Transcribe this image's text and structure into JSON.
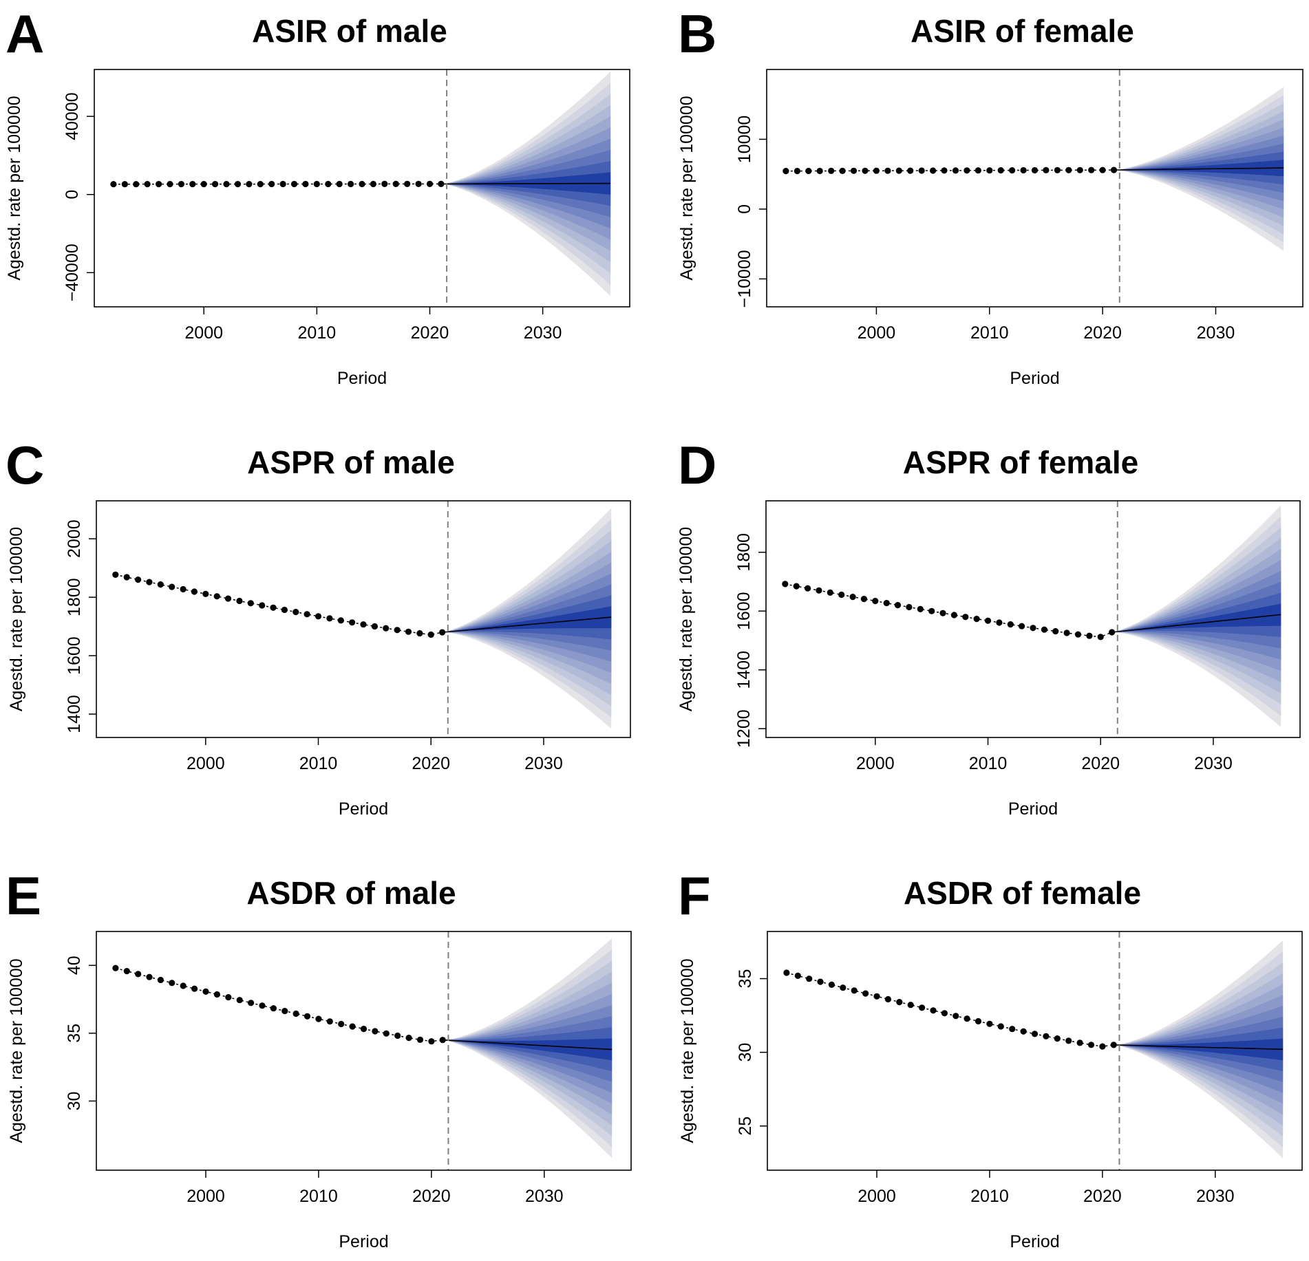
{
  "figure": {
    "x_axis_label": "Period",
    "y_axis_label": "Agestd. rate per 100000",
    "colors": {
      "points": "#000000",
      "projection_line": "#000000",
      "fan_dark": "#1f3fa5",
      "fan_light": "#e4e4e8",
      "divider": "#808080"
    }
  },
  "chart_data": [
    {
      "panel": "A",
      "type": "line",
      "title": "ASIR of male",
      "xlabel": "Period",
      "ylabel": "Agestd. rate per 100000",
      "xlim": [
        1990.3,
        2037.7
      ],
      "xticks": [
        2000,
        2010,
        2020,
        2030
      ],
      "ylim": [
        -57500,
        64000
      ],
      "yticks": [
        -40000,
        0,
        40000
      ],
      "ytick_labels": [
        "−40000",
        "0",
        "40000"
      ],
      "observed": {
        "start_year": 1992,
        "end_year": 2021,
        "first_value": 5300,
        "last_value": 5400,
        "shape": "flat"
      },
      "projection": {
        "start_year": 2021,
        "end_year": 2036,
        "start_value": 5400,
        "end_value": 5700,
        "upper_end": 63000,
        "lower_end": -52000
      },
      "divider_year": 2021.5
    },
    {
      "panel": "B",
      "type": "line",
      "title": "ASIR of female",
      "xlabel": "Period",
      "ylabel": "Agestd. rate per 100000",
      "xlim": [
        1990.3,
        2037.7
      ],
      "xticks": [
        2000,
        2010,
        2020,
        2030
      ],
      "ylim": [
        -14000,
        20000
      ],
      "yticks": [
        -10000,
        0,
        10000
      ],
      "ytick_labels": [
        "−10000",
        "0",
        "10000"
      ],
      "observed": {
        "start_year": 1992,
        "end_year": 2021,
        "first_value": 5450,
        "last_value": 5600,
        "shape": "flat"
      },
      "projection": {
        "start_year": 2021,
        "end_year": 2036,
        "start_value": 5600,
        "end_value": 5900,
        "upper_end": 17500,
        "lower_end": -6000
      },
      "divider_year": 2021.5
    },
    {
      "panel": "C",
      "type": "line",
      "title": "ASPR of male",
      "xlabel": "Period",
      "ylabel": "Agestd. rate per 100000",
      "xlim": [
        1990.3,
        2037.7
      ],
      "xticks": [
        2000,
        2010,
        2020,
        2030
      ],
      "ylim": [
        1320,
        2130
      ],
      "yticks": [
        1400,
        1600,
        1800,
        2000
      ],
      "ytick_labels": [
        "1400",
        "1600",
        "1800",
        "2000"
      ],
      "observed": {
        "start_year": 1992,
        "end_year": 2021,
        "first_value": 1877,
        "last_value": 1680,
        "shape": "curve",
        "dip_year": 2020,
        "dip_value": 1672
      },
      "projection": {
        "start_year": 2021,
        "end_year": 2036,
        "start_value": 1680,
        "end_value": 1732,
        "upper_end": 2105,
        "lower_end": 1350
      },
      "divider_year": 2021.5
    },
    {
      "panel": "D",
      "type": "line",
      "title": "ASPR of female",
      "xlabel": "Period",
      "ylabel": "Agestd. rate per 100000",
      "xlim": [
        1990.3,
        2037.7
      ],
      "xticks": [
        2000,
        2010,
        2020,
        2030
      ],
      "ylim": [
        1170,
        1975
      ],
      "yticks": [
        1200,
        1400,
        1600,
        1800
      ],
      "ytick_labels": [
        "1200",
        "1400",
        "1600",
        "1800"
      ],
      "observed": {
        "start_year": 1992,
        "end_year": 2021,
        "first_value": 1692,
        "last_value": 1528,
        "shape": "curve",
        "dip_year": 2020,
        "dip_value": 1512
      },
      "projection": {
        "start_year": 2021,
        "end_year": 2036,
        "start_value": 1528,
        "end_value": 1588,
        "upper_end": 1960,
        "lower_end": 1205
      },
      "divider_year": 2021.5
    },
    {
      "panel": "E",
      "type": "line",
      "title": "ASDR of male",
      "xlabel": "Period",
      "ylabel": "Agestd. rate per 100000",
      "xlim": [
        1990.3,
        2037.7
      ],
      "xticks": [
        2000,
        2010,
        2020,
        2030
      ],
      "ylim": [
        24.9,
        42.5
      ],
      "yticks": [
        30,
        35,
        40
      ],
      "ytick_labels": [
        "30",
        "35",
        "40"
      ],
      "observed": {
        "start_year": 1992,
        "end_year": 2021,
        "first_value": 39.8,
        "last_value": 34.5,
        "shape": "curve",
        "dip_year": 2020,
        "dip_value": 34.4
      },
      "projection": {
        "start_year": 2021,
        "end_year": 2036,
        "start_value": 34.5,
        "end_value": 33.8,
        "upper_end": 42.0,
        "lower_end": 25.8
      },
      "divider_year": 2021.5
    },
    {
      "panel": "F",
      "type": "line",
      "title": "ASDR of female",
      "xlabel": "Period",
      "ylabel": "Agestd. rate per 100000",
      "xlim": [
        1990.3,
        2037.7
      ],
      "xticks": [
        2000,
        2010,
        2020,
        2030
      ],
      "ylim": [
        22,
        38.2
      ],
      "yticks": [
        25,
        30,
        35
      ],
      "ytick_labels": [
        "25",
        "30",
        "35"
      ],
      "observed": {
        "start_year": 1992,
        "end_year": 2021,
        "first_value": 35.4,
        "last_value": 30.5,
        "shape": "curve",
        "dip_year": 2020,
        "dip_value": 30.4
      },
      "projection": {
        "start_year": 2021,
        "end_year": 2036,
        "start_value": 30.5,
        "end_value": 30.2,
        "upper_end": 37.6,
        "lower_end": 22.8
      },
      "divider_year": 2021.5
    }
  ]
}
